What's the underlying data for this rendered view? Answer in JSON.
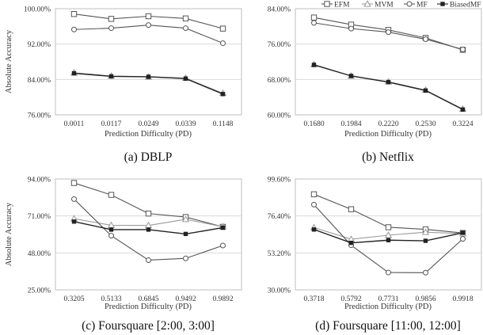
{
  "legend": [
    {
      "name": "EFM",
      "marker": "square"
    },
    {
      "name": "MVM",
      "marker": "triangle"
    },
    {
      "name": "MF",
      "marker": "circle"
    },
    {
      "name": "BiasedMF",
      "marker": "filled-square"
    }
  ],
  "colors": {
    "EFM": "#555555",
    "MVM": "#9a9a9a",
    "MF": "#555555",
    "BiasedMF": "#222222",
    "grid": "#d9d9d9",
    "frame": "#bfbfbf"
  },
  "chart_data": [
    {
      "id": "a",
      "type": "line",
      "caption": "(a) DBLP",
      "ylabel": "Absolute Accuracy",
      "xlabel": "Prediction Difficulty (PD)",
      "categories": [
        "0.0011",
        "0.0117",
        "0.0249",
        "0.0339",
        "0.1148"
      ],
      "yticks": [
        "76.00%",
        "84.00%",
        "92.00%",
        "100.00%"
      ],
      "ylim": [
        76,
        100
      ],
      "grid": true,
      "series": [
        {
          "name": "EFM",
          "values": [
            98.8,
            97.7,
            98.3,
            97.8,
            95.5
          ]
        },
        {
          "name": "MVM",
          "values": [
            85.5,
            84.8,
            84.6,
            84.3,
            80.9
          ]
        },
        {
          "name": "MF",
          "values": [
            95.3,
            95.6,
            96.3,
            95.6,
            92.2
          ]
        },
        {
          "name": "BiasedMF",
          "values": [
            85.4,
            84.7,
            84.6,
            84.2,
            80.7
          ]
        }
      ]
    },
    {
      "id": "b",
      "type": "line",
      "caption": "(b) Netflix",
      "ylabel": "",
      "xlabel": "Prediction Difficulty (PD)",
      "categories": [
        "0.1680",
        "0.1984",
        "0.2220",
        "0.2530",
        "0.3224"
      ],
      "yticks": [
        "60.00%",
        "68.00%",
        "76.00%",
        "84.00%"
      ],
      "ylim": [
        60,
        84
      ],
      "grid": true,
      "series": [
        {
          "name": "EFM",
          "values": [
            82.0,
            80.4,
            79.2,
            77.4,
            74.7
          ]
        },
        {
          "name": "MVM",
          "values": [
            71.4,
            68.8,
            67.5,
            65.6,
            61.3
          ]
        },
        {
          "name": "MF",
          "values": [
            80.8,
            79.5,
            78.7,
            77.1,
            74.8
          ]
        },
        {
          "name": "BiasedMF",
          "values": [
            71.3,
            68.8,
            67.4,
            65.5,
            61.2
          ]
        }
      ]
    },
    {
      "id": "c",
      "type": "line",
      "caption": "(c) Foursquare [2:00, 3:00]",
      "ylabel": "Absolute Accuracy",
      "xlabel": "Prediction Difficulty (PD)",
      "categories": [
        "0.3205",
        "0.5133",
        "0.6845",
        "0.9492",
        "0.9892"
      ],
      "yticks": [
        "25.00%",
        "48.00%",
        "71.00%",
        "94.00%"
      ],
      "ylim": [
        25,
        94
      ],
      "grid": true,
      "series": [
        {
          "name": "EFM",
          "values": [
            91.5,
            84.1,
            72.5,
            70.3,
            64.2
          ]
        },
        {
          "name": "MVM",
          "values": [
            69.3,
            65.2,
            65.1,
            68.9,
            64.3
          ]
        },
        {
          "name": "MF",
          "values": [
            81.5,
            58.7,
            43.5,
            44.6,
            52.6
          ]
        },
        {
          "name": "BiasedMF",
          "values": [
            67.5,
            62.5,
            62.5,
            59.8,
            63.7
          ]
        }
      ]
    },
    {
      "id": "d",
      "type": "line",
      "caption": "(d) Foursquare [11:00, 12:00]",
      "ylabel": "",
      "xlabel": "Prediction Difficulty (PD)",
      "categories": [
        "0.3718",
        "0.5792",
        "0.7731",
        "0.9856",
        "0.9918"
      ],
      "yticks": [
        "30.00%",
        "53.20%",
        "76.40%",
        "99.60%"
      ],
      "ylim": [
        30,
        99.6
      ],
      "grid": true,
      "series": [
        {
          "name": "EFM",
          "values": [
            90.0,
            80.6,
            69.3,
            68.0,
            65.7
          ]
        },
        {
          "name": "MVM",
          "values": [
            69.1,
            61.8,
            64.3,
            66.2,
            65.3
          ]
        },
        {
          "name": "MF",
          "values": [
            83.5,
            58.0,
            40.9,
            40.8,
            62.0
          ]
        },
        {
          "name": "BiasedMF",
          "values": [
            67.9,
            59.5,
            61.2,
            60.8,
            65.8
          ]
        }
      ]
    }
  ]
}
